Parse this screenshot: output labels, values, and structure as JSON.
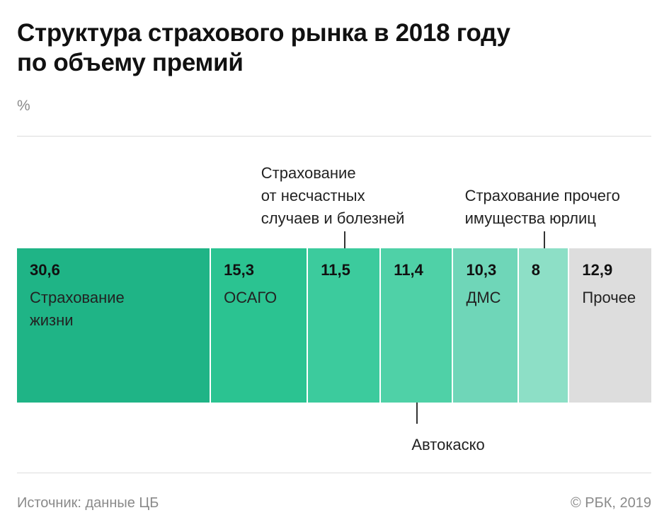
{
  "header": {
    "title": "Структура страхового рынка в 2018 году\nпо объему премий",
    "unit": "%"
  },
  "footer": {
    "source": "Источник: данные ЦБ",
    "copyright": "© РБК, 2019"
  },
  "chart_data": {
    "type": "bar",
    "orientation": "horizontal",
    "stacked": true,
    "unit": "%",
    "title": "Структура страхового рынка в 2018 году по объему премий",
    "categories": [
      "Страхование\nжизни",
      "ОСАГО",
      "Страхование\nот несчастных\nслучаев и болезней",
      "Автокаско",
      "ДМС",
      "Страхование прочего\nимущества юрлиц",
      "Прочее"
    ],
    "values": [
      30.6,
      15.3,
      11.5,
      11.4,
      10.3,
      8,
      12.9
    ],
    "value_labels": [
      "30,6",
      "15,3",
      "11,5",
      "11,4",
      "10,3",
      "8",
      "12,9"
    ],
    "label_placement": [
      "inside",
      "inside",
      "above",
      "below",
      "inside",
      "above",
      "inside"
    ],
    "colors": [
      "#1fb486",
      "#2bc391",
      "#3ccb9d",
      "#4fd1a7",
      "#6fd6b8",
      "#8ddfc6",
      "#dddddd"
    ]
  }
}
